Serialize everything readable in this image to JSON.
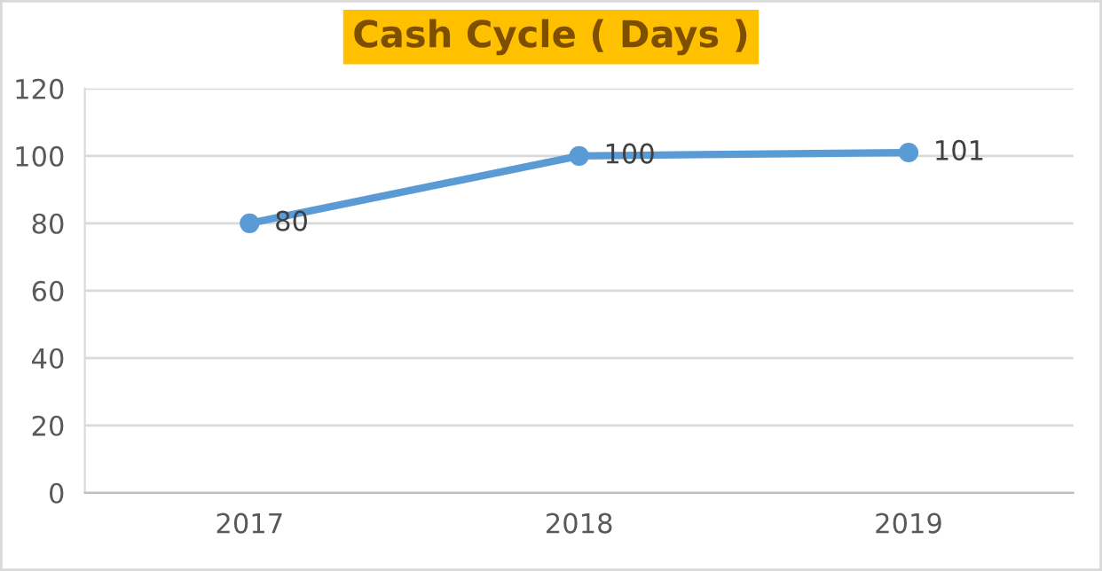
{
  "chart_data": {
    "type": "line",
    "title": "Cash Cycle ( Days )",
    "categories": [
      "2017",
      "2018",
      "2019"
    ],
    "series": [
      {
        "color": "#5b9bd5",
        "values": [
          80,
          100,
          101
        ]
      }
    ],
    "ylim": [
      0,
      120
    ],
    "yticks": [
      0,
      20,
      40,
      60,
      80,
      100,
      120
    ],
    "grid": "y",
    "marker": "circle",
    "line_style": "solid",
    "data_labels": true,
    "legend": false
  }
}
